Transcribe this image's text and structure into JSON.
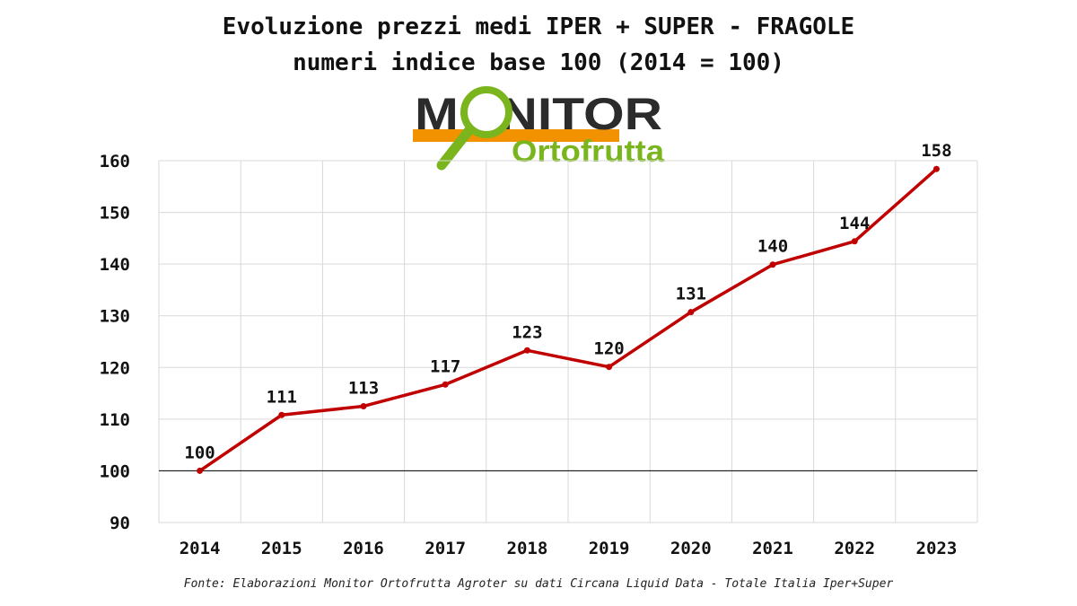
{
  "title_line1": "Evoluzione prezzi medi IPER + SUPER - FRAGOLE",
  "title_line2": "numeri indice base 100 (2014 = 100)",
  "logo": {
    "word1": "MONITOR",
    "word2": "Ortofrutta",
    "dark_color": "#2b2b2b",
    "green_color": "#7ab51d",
    "orange_color": "#f39200"
  },
  "source": "Fonte: Elaborazioni Monitor Ortofrutta Agroter su dati Circana Liquid Data - Totale Italia Iper+Super",
  "chart_data": {
    "type": "line",
    "categories": [
      "2014",
      "2015",
      "2016",
      "2017",
      "2018",
      "2019",
      "2020",
      "2021",
      "2022",
      "2023"
    ],
    "series": [
      {
        "values": [
          100,
          110.8,
          112.5,
          116.7,
          123.3,
          120.1,
          130.7,
          139.9,
          144.4,
          158.4
        ],
        "labels": [
          "100",
          "111",
          "113",
          "117",
          "123",
          "120",
          "131",
          "140",
          "144",
          "158"
        ],
        "color": "#c00000"
      }
    ],
    "ylim": [
      90,
      160
    ],
    "yticks": [
      90,
      100,
      110,
      120,
      130,
      140,
      150,
      160
    ],
    "reference_line": 100,
    "grid": true,
    "gridline_color": "#d9d9d9",
    "xlabel": "",
    "ylabel": ""
  }
}
